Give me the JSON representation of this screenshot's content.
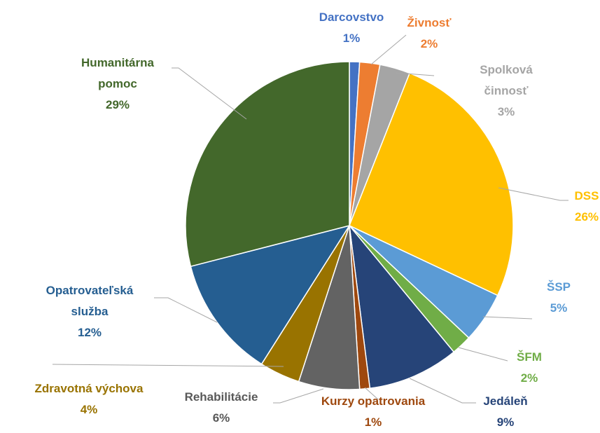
{
  "chart_data": {
    "type": "pie",
    "categories": [
      "Darcovstvo",
      "Živnosť",
      "Spolková činnosť",
      "DSS",
      "ŠSP",
      "ŠFM",
      "Jedáleň",
      "Kurzy opatrovania",
      "Rehabilitácie",
      "Zdravotná výchova",
      "Opatrovateľská služba",
      "Humanitárna pomoc"
    ],
    "values": [
      1,
      2,
      3,
      26,
      5,
      2,
      9,
      1,
      6,
      4,
      12,
      29
    ],
    "value_labels": [
      "1%",
      "2%",
      "3%",
      "26%",
      "5%",
      "2%",
      "9%",
      "1%",
      "6%",
      "4%",
      "12%",
      "29%"
    ],
    "colors": [
      "#4472c4",
      "#ed7d31",
      "#a5a5a5",
      "#ffc000",
      "#5b9bd5",
      "#70ad47",
      "#264478",
      "#9e480e",
      "#636363",
      "#997300",
      "#255e91",
      "#43682b"
    ],
    "label_colors": [
      "#4472c4",
      "#ed7d31",
      "#a5a5a5",
      "#ffc000",
      "#5b9bd5",
      "#70ad47",
      "#264478",
      "#9e480e",
      "#595959",
      "#997300",
      "#255e91",
      "#43682b"
    ]
  }
}
